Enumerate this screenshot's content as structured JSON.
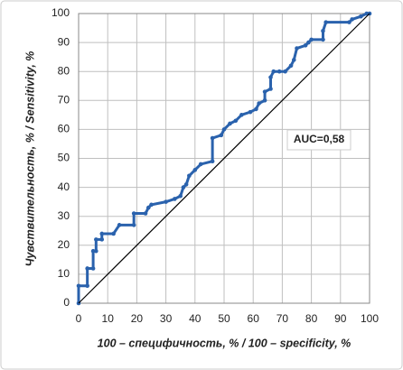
{
  "chart_data": {
    "type": "line",
    "xlabel": "100 – специфичность, % / 100 – specificity, %",
    "ylabel": "Чувствительность, % / Sensitivity, %",
    "annotation": "AUC=0,58",
    "annotation_color": "#f08a24",
    "xlim": [
      0,
      100
    ],
    "ylim": [
      0,
      100
    ],
    "xticks": [
      0,
      10,
      20,
      30,
      40,
      50,
      60,
      70,
      80,
      90,
      100
    ],
    "yticks": [
      0,
      10,
      20,
      30,
      40,
      50,
      60,
      70,
      80,
      90,
      100
    ],
    "grid": true,
    "series": [
      {
        "color": "#2a62ad",
        "markers": true,
        "x": [
          0,
          0,
          3,
          3,
          5,
          5,
          6,
          6,
          8,
          8,
          12,
          14,
          19,
          19,
          23,
          24,
          25,
          30,
          33,
          35,
          36,
          37,
          38,
          40,
          42,
          46,
          46,
          49,
          50,
          52,
          54,
          56,
          59,
          61,
          62,
          64,
          64,
          66,
          66,
          67,
          69,
          71,
          73,
          74,
          75,
          78,
          79,
          80,
          84,
          84,
          85,
          93,
          94,
          97,
          99,
          100
        ],
        "values": [
          0,
          6,
          6,
          12,
          12,
          18,
          18,
          22,
          22,
          24,
          24,
          27,
          27,
          31,
          31,
          33,
          34,
          35,
          36,
          37,
          40,
          41,
          44,
          46,
          48,
          49,
          57,
          58,
          60,
          62,
          63,
          65,
          66,
          67,
          69,
          70,
          73,
          74,
          78,
          80,
          80,
          80,
          82,
          84,
          88,
          89,
          90,
          91,
          91,
          94,
          97,
          97,
          98,
          99,
          100,
          100
        ]
      },
      {
        "color": "#000000",
        "markers": false,
        "x": [
          0,
          100
        ],
        "values": [
          0,
          100
        ]
      }
    ]
  }
}
